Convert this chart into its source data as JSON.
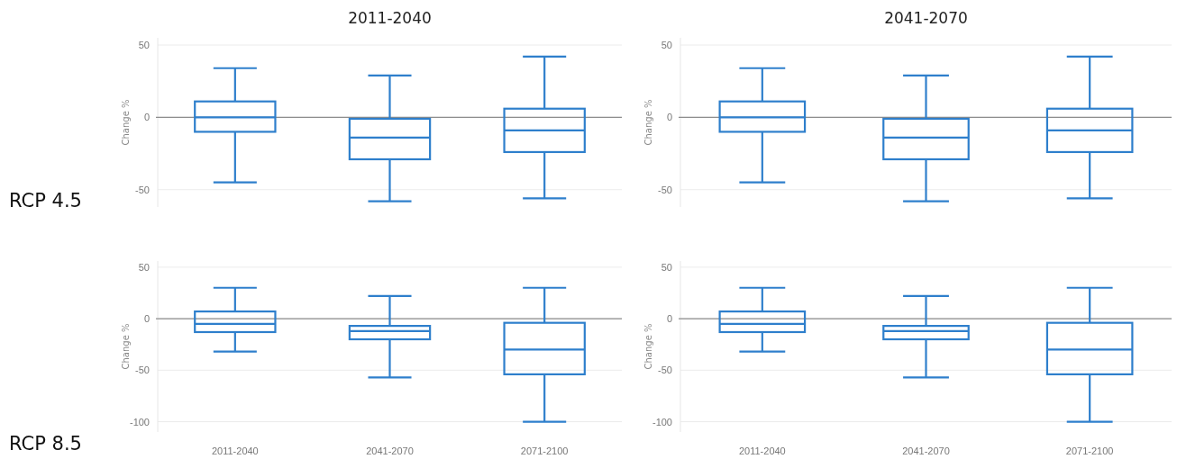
{
  "chart_data": [
    {
      "type": "box",
      "title": "2011-2040",
      "ylabel": "Change %",
      "annotations": [
        "RCP 4.5"
      ],
      "categories": [
        null,
        null,
        null
      ],
      "tick_labels": "y",
      "ylim": [
        -62,
        55
      ],
      "yticks": [
        -50,
        0,
        50
      ],
      "grid": "y",
      "color": "#2e7fcc",
      "ref_lines": [
        {
          "axis": "y",
          "value": 0,
          "color": "#8c8c8c"
        }
      ],
      "boxes": [
        {
          "low": -45,
          "q1": -10,
          "median": 0,
          "q3": 11,
          "high": 34
        },
        {
          "low": -58,
          "q1": -29,
          "median": -14,
          "q3": -1,
          "high": 29
        },
        {
          "low": -56,
          "q1": -24,
          "median": -9,
          "q3": 6,
          "high": 42
        }
      ]
    },
    {
      "type": "box",
      "title": "2041-2070",
      "ylabel": "Change %",
      "categories": [
        null,
        null,
        null
      ],
      "tick_labels": "y",
      "ylim": [
        -62,
        55
      ],
      "yticks": [
        -50,
        0,
        50
      ],
      "grid": "y",
      "color": "#2e7fcc",
      "ref_lines": [
        {
          "axis": "y",
          "value": 0,
          "color": "#8c8c8c"
        }
      ],
      "boxes": [
        {
          "low": -45,
          "q1": -10,
          "median": 0,
          "q3": 11,
          "high": 34
        },
        {
          "low": -58,
          "q1": -29,
          "median": -14,
          "q3": -1,
          "high": 29
        },
        {
          "low": -56,
          "q1": -24,
          "median": -9,
          "q3": 6,
          "high": 42
        }
      ]
    },
    {
      "type": "box",
      "ylabel": "Change %",
      "annotations": [
        "RCP 8.5"
      ],
      "categories": [
        "2011-2040",
        "2041-2070",
        "2071-2100"
      ],
      "ylim": [
        -110,
        56
      ],
      "yticks": [
        -100,
        -50,
        0,
        50
      ],
      "grid": "y",
      "color": "#2e7fcc",
      "ref_lines": [
        {
          "axis": "y",
          "value": 0,
          "color": "#8c8c8c"
        }
      ],
      "boxes": [
        {
          "low": -32,
          "q1": -13,
          "median": -5,
          "q3": 7,
          "high": 30
        },
        {
          "low": -57,
          "q1": -20,
          "median": -12,
          "q3": -7,
          "high": 22
        },
        {
          "low": -100,
          "q1": -54,
          "median": -30,
          "q3": -4,
          "high": 30
        }
      ]
    },
    {
      "type": "box",
      "ylabel": "Change %",
      "categories": [
        "2011-2040",
        "2041-2070",
        "2071-2100"
      ],
      "ylim": [
        -110,
        56
      ],
      "yticks": [
        -100,
        -50,
        0,
        50
      ],
      "grid": "y",
      "color": "#2e7fcc",
      "ref_lines": [
        {
          "axis": "y",
          "value": 0,
          "color": "#8c8c8c"
        }
      ],
      "boxes": [
        {
          "low": -32,
          "q1": -13,
          "median": -5,
          "q3": 7,
          "high": 30
        },
        {
          "low": -57,
          "q1": -20,
          "median": -12,
          "q3": -7,
          "high": 22
        },
        {
          "low": -100,
          "q1": -54,
          "median": -30,
          "q3": -4,
          "high": 30
        }
      ]
    }
  ]
}
